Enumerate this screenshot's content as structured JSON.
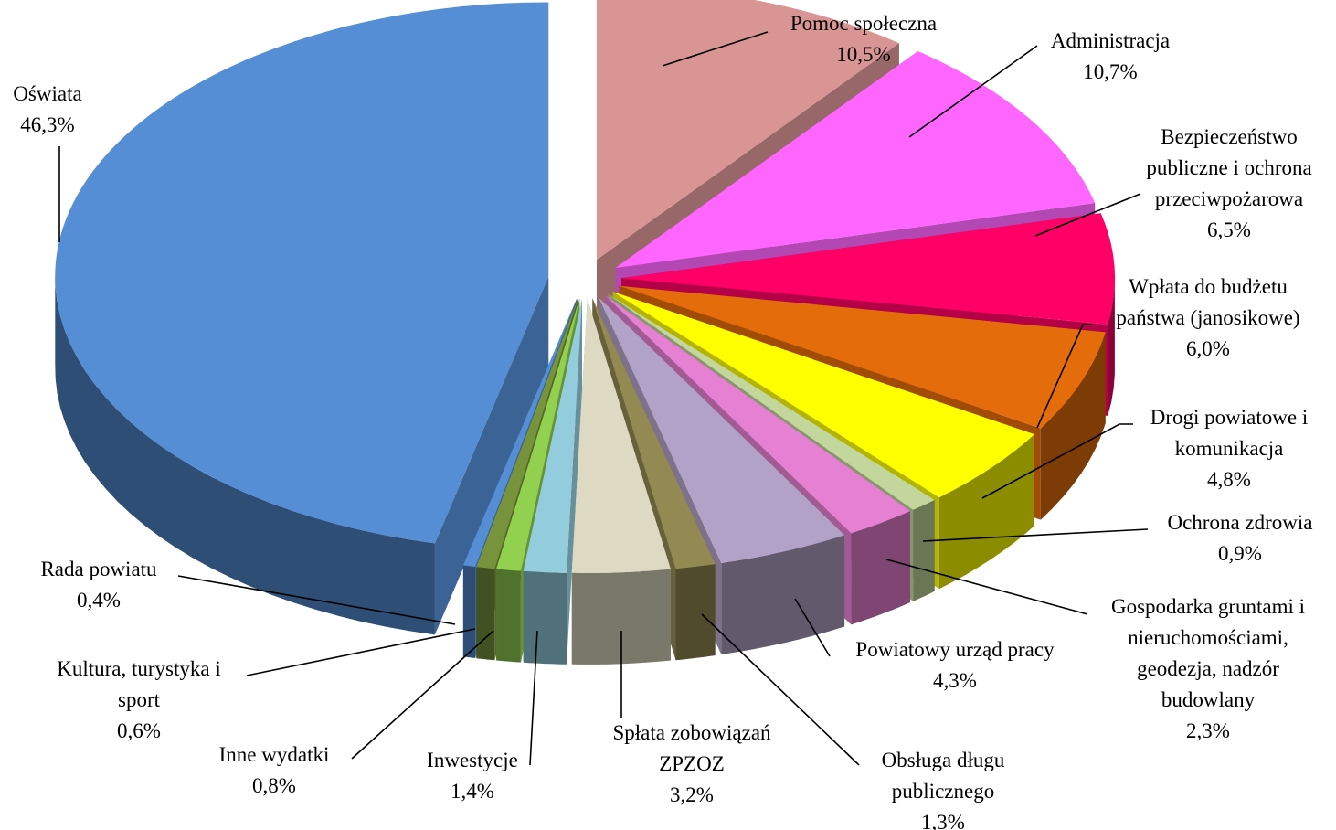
{
  "chart_data": {
    "type": "pie",
    "style": "3d-exploded",
    "title": "",
    "legend": "none",
    "slices": [
      {
        "name": "Pomoc społeczna",
        "value": 10.5,
        "label": "10,5%",
        "color": "#d99594"
      },
      {
        "name": "Administracja",
        "value": 10.7,
        "label": "10,7%",
        "color": "#ff66ff"
      },
      {
        "name": "Bezpieczeństwo publiczne i ochrona przeciwpożarowa",
        "value": 6.5,
        "label": "6,5%",
        "color": "#ff0066"
      },
      {
        "name": "Wpłata do budżetu państwa (janosikowe)",
        "value": 6.0,
        "label": "6,0%",
        "color": "#e46c0a"
      },
      {
        "name": "Drogi powiatowe i komunikacja",
        "value": 4.8,
        "label": "4,8%",
        "color": "#ffff00"
      },
      {
        "name": "Ochrona zdrowia",
        "value": 0.9,
        "label": "0,9%",
        "color": "#c3d69b"
      },
      {
        "name": "Gospodarka gruntami i nieruchomościami, geodezja, nadzór budowlany",
        "value": 2.3,
        "label": "2,3%",
        "color": "#e680d2"
      },
      {
        "name": "Powiatowy urząd pracy",
        "value": 4.3,
        "label": "4,3%",
        "color": "#b3a2c7"
      },
      {
        "name": "Obsługa długu publicznego",
        "value": 1.3,
        "label": "1,3%",
        "color": "#938953"
      },
      {
        "name": "Spłata zobowiązań ZPZOZ",
        "value": 3.2,
        "label": "3,2%",
        "color": "#ddd9c3"
      },
      {
        "name": "Inwestycje",
        "value": 1.4,
        "label": "1,4%",
        "color": "#93cddd"
      },
      {
        "name": "Inne wydatki",
        "value": 0.8,
        "label": "0,8%",
        "color": "#92d050"
      },
      {
        "name": "Kultura, turystyka i sport",
        "value": 0.6,
        "label": "0,6%",
        "color": "#77933c"
      },
      {
        "name": "Rada powiatu",
        "value": 0.4,
        "label": "0,4%",
        "color": "#558ed5"
      },
      {
        "name": "Oświata",
        "value": 46.3,
        "label": "46,3%",
        "color": "#558ed5"
      }
    ]
  }
}
